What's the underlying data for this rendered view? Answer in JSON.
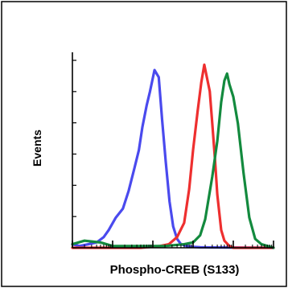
{
  "chart_data": {
    "type": "line",
    "title": "",
    "xlabel": "Phospho-CREB (S133)",
    "ylabel": "Events",
    "x_scale": "log",
    "xlim": [
      1,
      100000
    ],
    "ylim": [
      0,
      1.1
    ],
    "grid": false,
    "legend": "none",
    "series": [
      {
        "color": "#4a4aee",
        "x": [
          1,
          1.5,
          2.5,
          4,
          6,
          8,
          12,
          18,
          25,
          35,
          45,
          55,
          70,
          85,
          110,
          140,
          170,
          210,
          260,
          320,
          400,
          500,
          700,
          1000,
          1500,
          3000,
          100000
        ],
        "values": [
          0.02,
          0.01,
          0.02,
          0.03,
          0.06,
          0.1,
          0.17,
          0.22,
          0.32,
          0.45,
          0.55,
          0.68,
          0.8,
          0.88,
          1.0,
          0.96,
          0.72,
          0.48,
          0.26,
          0.12,
          0.05,
          0.02,
          0.01,
          0.005,
          0.003,
          0.002,
          0.0
        ]
      },
      {
        "color": "#ee2f2f",
        "x": [
          1,
          50,
          150,
          250,
          400,
          600,
          800,
          1000,
          1300,
          1600,
          1900,
          2200,
          2600,
          3000,
          3500,
          4000,
          5000,
          6000,
          8000,
          10000,
          100000
        ],
        "values": [
          0.0,
          0.0,
          0.01,
          0.02,
          0.06,
          0.14,
          0.33,
          0.55,
          0.77,
          0.93,
          1.03,
          0.96,
          0.88,
          0.7,
          0.5,
          0.3,
          0.1,
          0.04,
          0.01,
          0.0,
          0.0
        ]
      },
      {
        "color": "#138a3e",
        "x": [
          1,
          2,
          5,
          10,
          50,
          200,
          600,
          1000,
          1500,
          2000,
          3000,
          4000,
          5000,
          6000,
          7000,
          8000,
          10000,
          13000,
          18000,
          25000,
          35000,
          50000,
          100000
        ],
        "values": [
          0.02,
          0.04,
          0.03,
          0.01,
          0.01,
          0.01,
          0.02,
          0.03,
          0.07,
          0.16,
          0.4,
          0.6,
          0.82,
          0.94,
          0.98,
          0.92,
          0.85,
          0.7,
          0.42,
          0.17,
          0.05,
          0.02,
          0.0
        ]
      }
    ]
  }
}
